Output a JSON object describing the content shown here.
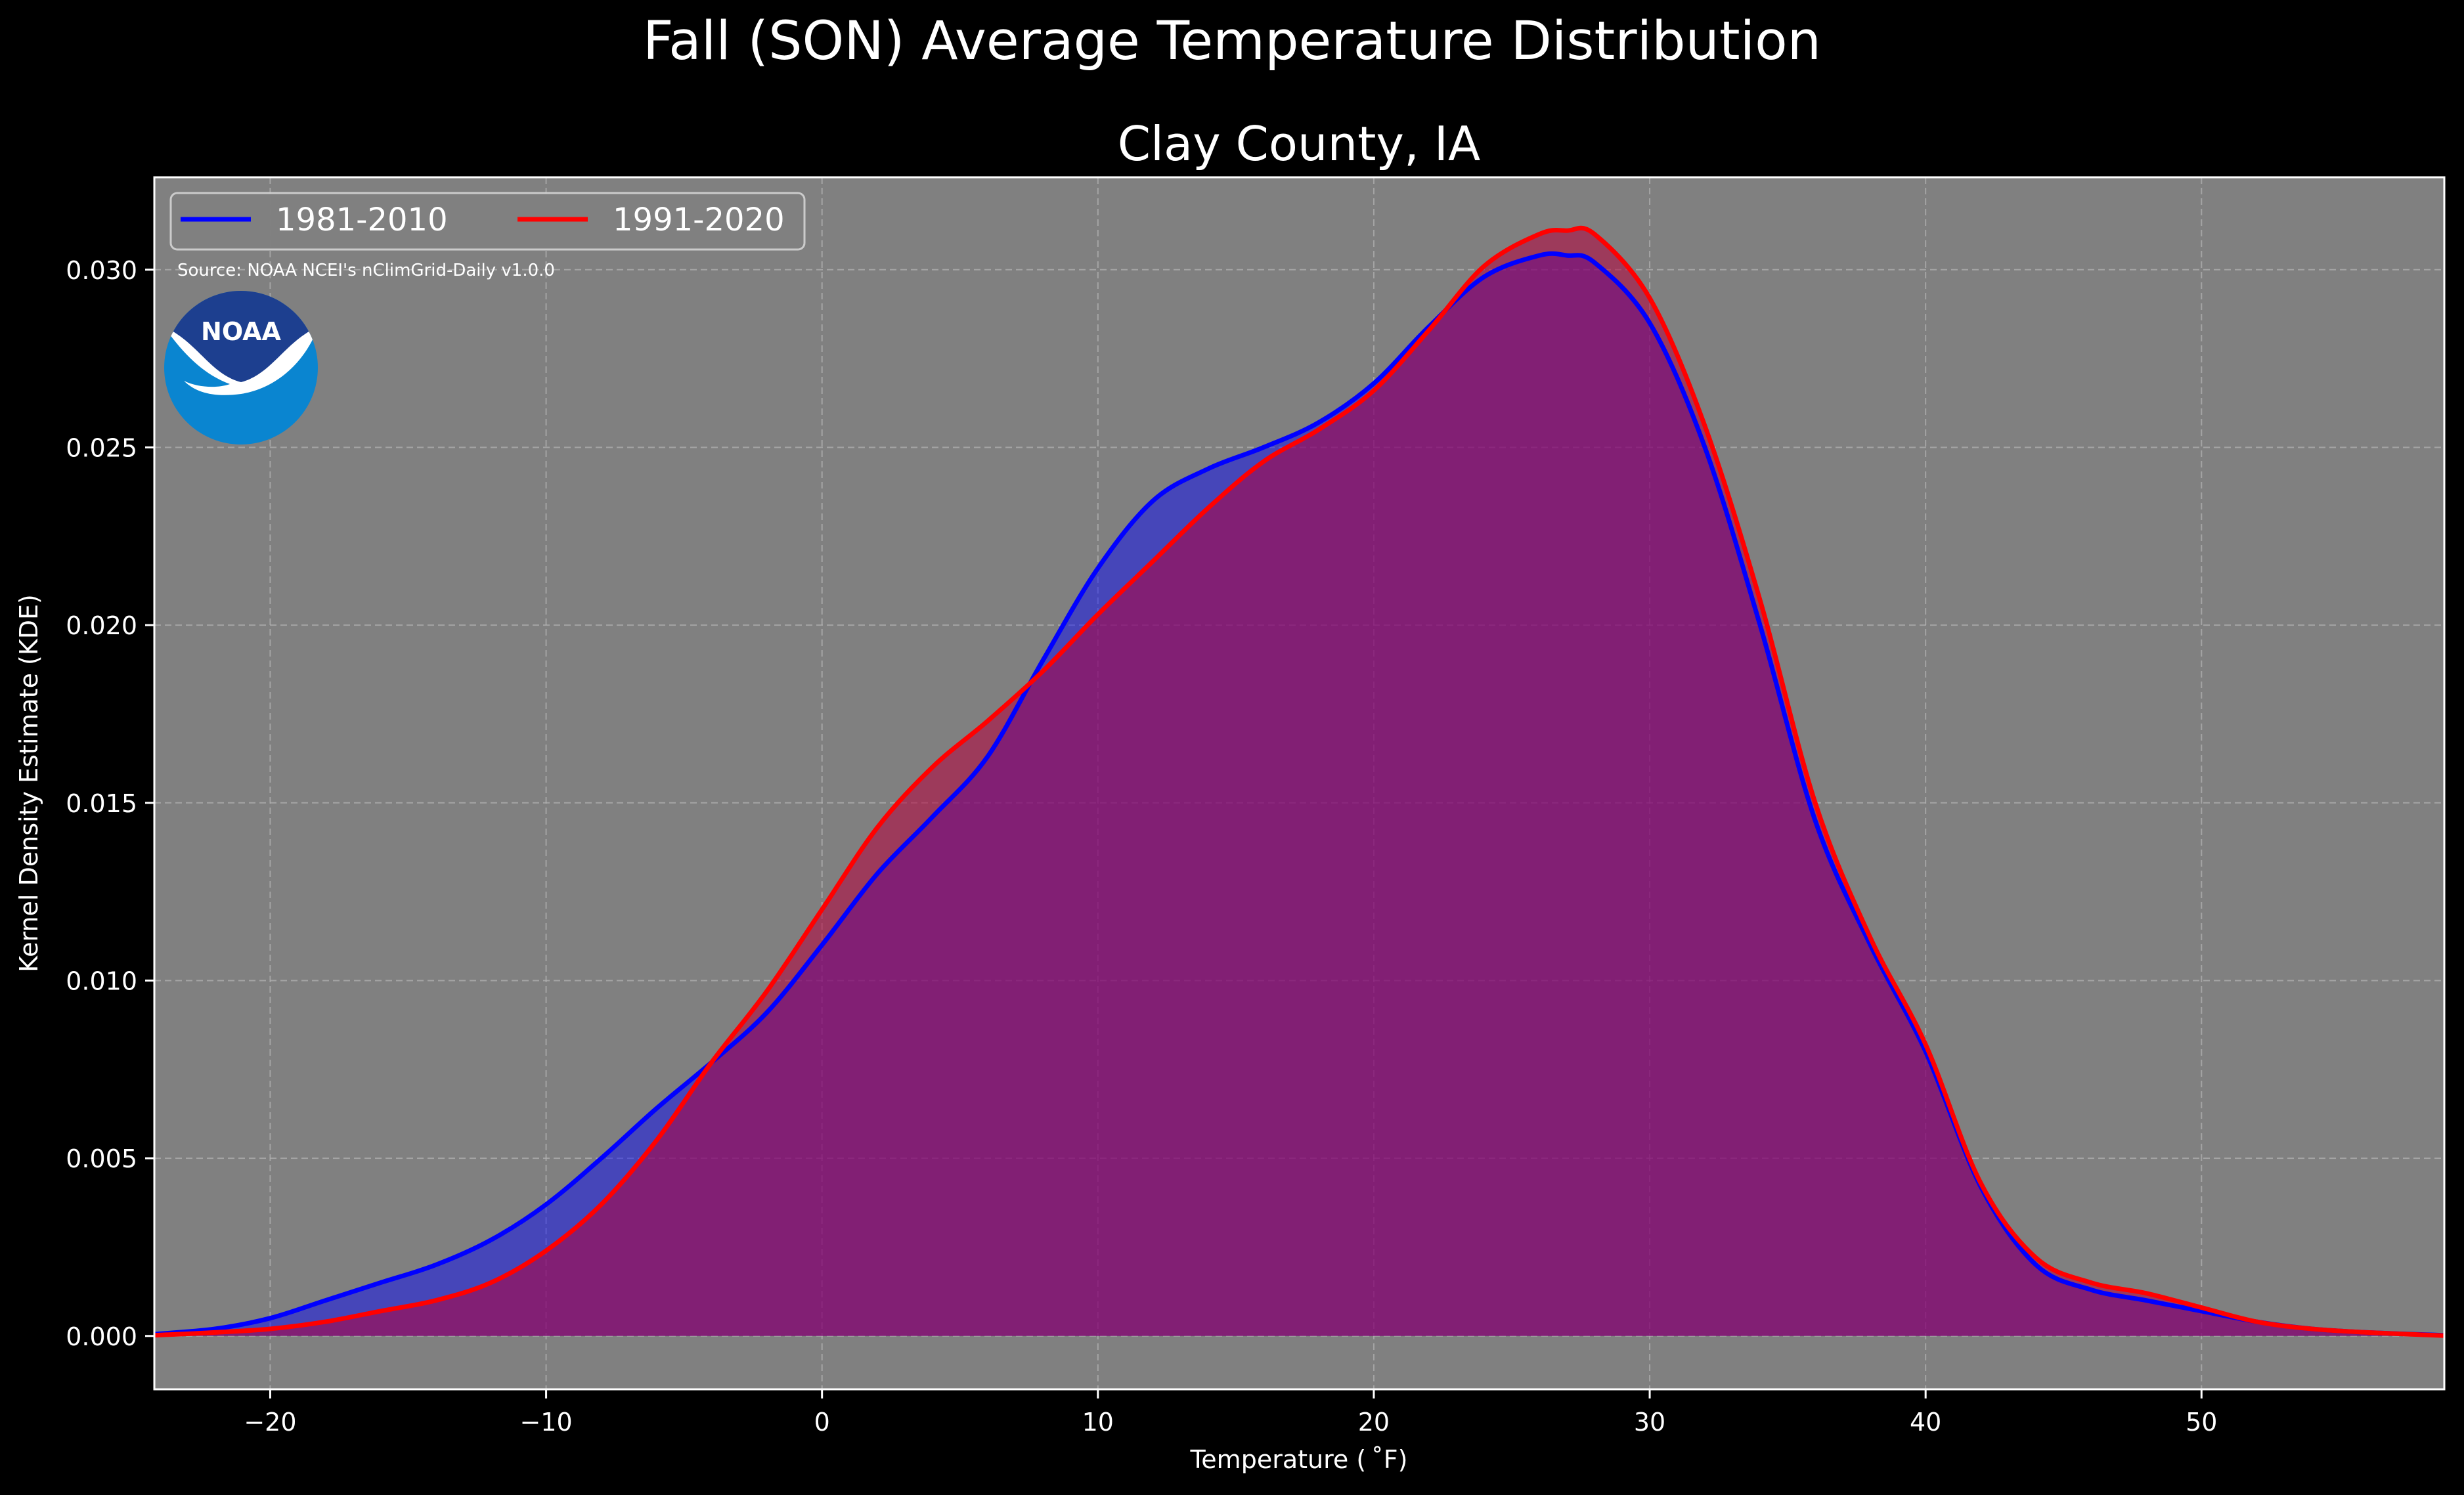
{
  "chart_data": {
    "type": "area",
    "title": "Fall (SON) Average Temperature Distribution",
    "subtitle": "Clay County, IA",
    "xlabel": "Temperature ($^\\circ$F)",
    "xlabel_display": "Temperature ( ˚F)",
    "ylabel": "Kernel Density Estimate (KDE)",
    "xlim": [
      -24.2,
      58.8
    ],
    "ylim": [
      -0.0015,
      0.0326
    ],
    "xticks": [
      -20,
      -10,
      0,
      10,
      20,
      30,
      40,
      50
    ],
    "xtick_labels": [
      "−20",
      "−10",
      "0",
      "10",
      "20",
      "30",
      "40",
      "50"
    ],
    "yticks": [
      0.0,
      0.005,
      0.01,
      0.015,
      0.02,
      0.025,
      0.03
    ],
    "ytick_labels": [
      "0.000",
      "0.005",
      "0.010",
      "0.015",
      "0.020",
      "0.025",
      "0.030"
    ],
    "grid": true,
    "legend_position": "top-left",
    "annotation": "Source: NOAA NCEI's nClimGrid-Daily v1.0.0",
    "logo_text": "NOAA",
    "background_color": "#000000",
    "plot_bg_color": "#808080",
    "series": [
      {
        "name": "1981-2010",
        "color": "#0000ff",
        "fill": "rgba(0,0,255,0.45)",
        "x": [
          -24.2,
          -22,
          -20,
          -18,
          -16,
          -14,
          -12,
          -10,
          -8,
          -6,
          -4,
          -2,
          0,
          2,
          4,
          6,
          8,
          10,
          12,
          14,
          16,
          18,
          20,
          22,
          24,
          26,
          27,
          28,
          30,
          32,
          34,
          36,
          38,
          40,
          42,
          44,
          46,
          48,
          50,
          52,
          54,
          56,
          58.8
        ],
        "y": [
          5e-05,
          0.0002,
          0.0005,
          0.001,
          0.0015,
          0.002,
          0.0027,
          0.0037,
          0.005,
          0.0064,
          0.0077,
          0.0091,
          0.011,
          0.013,
          0.0146,
          0.0163,
          0.019,
          0.0216,
          0.0235,
          0.0244,
          0.025,
          0.0257,
          0.0268,
          0.0284,
          0.0298,
          0.0304,
          0.0304,
          0.0302,
          0.0285,
          0.025,
          0.02,
          0.0145,
          0.011,
          0.008,
          0.0042,
          0.002,
          0.0013,
          0.001,
          0.0007,
          0.0004,
          0.0002,
          0.0001,
          2e-05
        ]
      },
      {
        "name": "1991-2020",
        "color": "#ff0000",
        "fill": "rgba(180,0,60,0.55)",
        "x": [
          -24.2,
          -22,
          -20,
          -18,
          -16,
          -14,
          -12,
          -10,
          -8,
          -6,
          -4,
          -2,
          0,
          2,
          4,
          6,
          8,
          10,
          12,
          14,
          16,
          18,
          20,
          22,
          24,
          26,
          27,
          28,
          30,
          32,
          34,
          36,
          38,
          40,
          42,
          44,
          46,
          48,
          50,
          52,
          54,
          56,
          58.8
        ],
        "y": [
          2e-05,
          0.0001,
          0.0002,
          0.0004,
          0.0007,
          0.001,
          0.0015,
          0.0024,
          0.0037,
          0.0055,
          0.0077,
          0.0097,
          0.012,
          0.0143,
          0.016,
          0.0173,
          0.0187,
          0.0203,
          0.0218,
          0.0233,
          0.0246,
          0.0255,
          0.0266,
          0.0283,
          0.0301,
          0.031,
          0.0311,
          0.031,
          0.0292,
          0.0256,
          0.0207,
          0.015,
          0.0112,
          0.0082,
          0.0043,
          0.0022,
          0.0015,
          0.0012,
          0.0008,
          0.0004,
          0.0002,
          0.0001,
          1e-05
        ]
      }
    ]
  }
}
